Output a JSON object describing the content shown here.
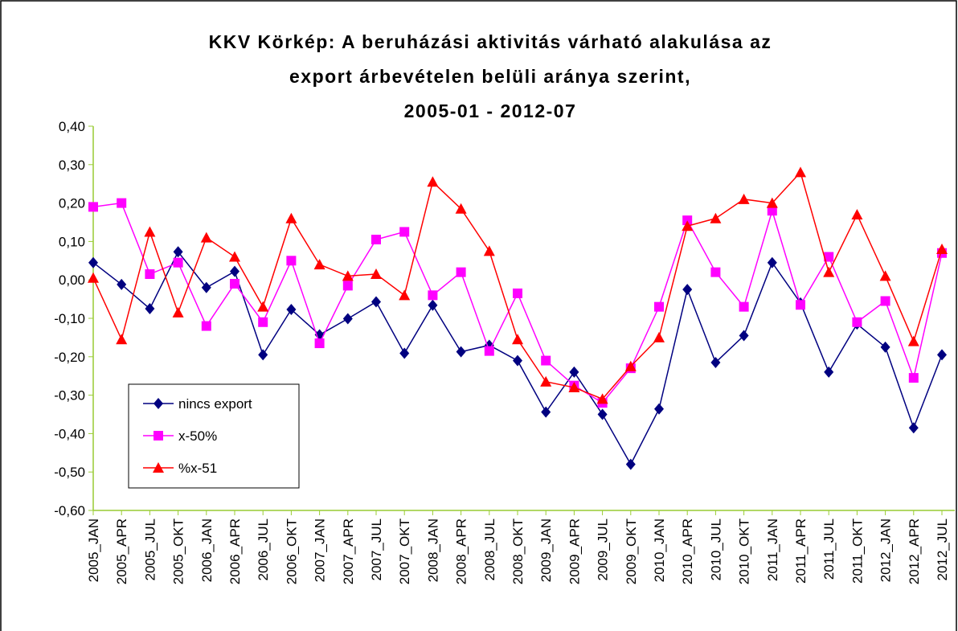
{
  "chart_data": {
    "type": "line",
    "title": [
      "KKV Körkép: A beruházási aktivitás várható alakulása az",
      "export árbevételen belüli aránya szerint,",
      "2005-01 - 2012-07"
    ],
    "categories": [
      "2005_JAN",
      "2005_APR",
      "2005_JUL",
      "2005_OKT",
      "2006_JAN",
      "2006_APR",
      "2006_JUL",
      "2006_OKT",
      "2007_JAN",
      "2007_APR",
      "2007_JUL",
      "2007_OKT",
      "2008_JAN",
      "2008_APR",
      "2008_JUL",
      "2008_OKT",
      "2009_JAN",
      "2009_APR",
      "2009_JUL",
      "2009_OKT",
      "2010_JAN",
      "2010_APR",
      "2010_JUL",
      "2010_OKT",
      "2011_JAN",
      "2011_APR",
      "2011_JUL",
      "2011_OKT",
      "2012_JAN",
      "2012_APR",
      "2012_JUL"
    ],
    "series": [
      {
        "name": "nincs export",
        "color": "#000080",
        "marker": "diamond",
        "values": [
          0.045,
          -0.012,
          -0.075,
          0.073,
          -0.02,
          0.022,
          -0.195,
          -0.077,
          -0.143,
          -0.101,
          -0.057,
          -0.191,
          -0.066,
          -0.187,
          -0.17,
          -0.21,
          -0.344,
          -0.24,
          -0.35,
          -0.48,
          -0.336,
          -0.025,
          -0.215,
          -0.145,
          0.045,
          -0.06,
          -0.24,
          -0.115,
          -0.175,
          -0.385,
          -0.195
        ]
      },
      {
        "name": "x-50%",
        "color": "#ff00ff",
        "marker": "square",
        "values": [
          0.19,
          0.2,
          0.015,
          0.045,
          -0.12,
          -0.01,
          -0.11,
          0.05,
          -0.165,
          -0.015,
          0.105,
          0.125,
          -0.04,
          0.02,
          -0.185,
          -0.035,
          -0.21,
          -0.275,
          -0.32,
          -0.23,
          -0.07,
          0.155,
          0.02,
          -0.07,
          0.18,
          -0.065,
          0.06,
          -0.11,
          -0.055,
          -0.255,
          0.07
        ]
      },
      {
        "name": "%x-51",
        "color": "#ff0000",
        "marker": "triangle",
        "values": [
          0.005,
          -0.155,
          0.125,
          -0.085,
          0.11,
          0.06,
          -0.07,
          0.16,
          0.04,
          0.01,
          0.015,
          -0.04,
          0.255,
          0.185,
          0.075,
          -0.155,
          -0.265,
          -0.28,
          -0.31,
          -0.225,
          -0.15,
          0.14,
          0.16,
          0.21,
          0.2,
          0.28,
          0.02,
          0.17,
          0.01,
          -0.16,
          0.08
        ]
      }
    ],
    "ylim": [
      -0.6,
      0.4
    ],
    "yticks": [
      {
        "value": 0.4,
        "label": "0,40"
      },
      {
        "value": 0.3,
        "label": "0,30"
      },
      {
        "value": 0.2,
        "label": "0,20"
      },
      {
        "value": 0.1,
        "label": "0,10"
      },
      {
        "value": 0,
        "label": "0,00"
      },
      {
        "value": -0.1,
        "label": "-0,10"
      },
      {
        "value": -0.2,
        "label": "-0,20"
      },
      {
        "value": -0.3,
        "label": "-0,30"
      },
      {
        "value": -0.4,
        "label": "-0,40"
      },
      {
        "value": -0.5,
        "label": "-0,50"
      },
      {
        "value": -0.6,
        "label": "-0,60"
      }
    ],
    "grid": false,
    "legend": "lower left"
  }
}
